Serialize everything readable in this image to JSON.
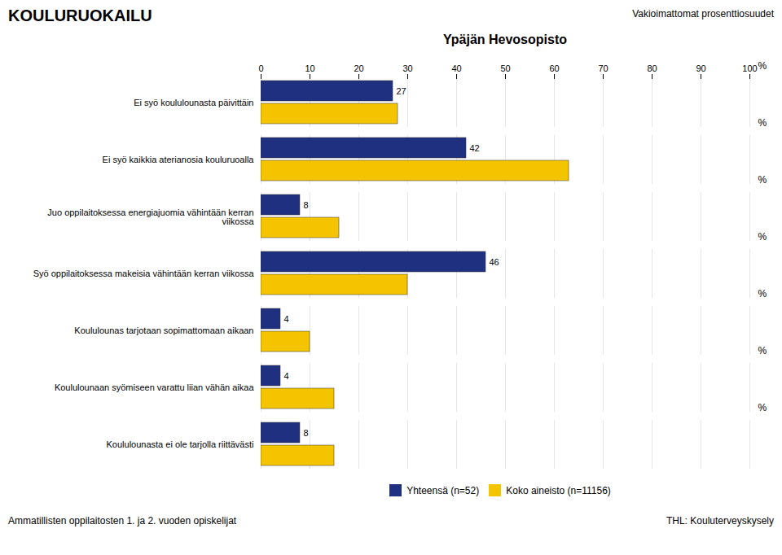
{
  "chart_data": {
    "type": "bar",
    "orientation": "horizontal",
    "title": "KOULURUOKAILU",
    "subtitle": "Ypäjän Hevosopisto",
    "annotations": [
      "Vakioimattomat prosenttiosuudet",
      "Ammatillisten oppilaitosten 1. ja 2. vuoden opiskelijat",
      "THL: Kouluterveyskysely"
    ],
    "xlabel": "%",
    "categories": [
      "Ei syö koululounasta päivittäin",
      "Ei syö kaikkia aterianosia kouluruoalla",
      "Juo oppilaitoksessa energiajuomia vähintään kerran\nviikossa",
      "Syö oppilaitoksessa makeisia vähintään kerran viikossa",
      "Koululounas tarjotaan sopimattomaan aikaan",
      "Koululounaan syömiseen varattu liian vähän aikaa",
      "Koululounasta ei ole tarjolla riittävästi"
    ],
    "series": [
      {
        "name": "Yhteensä (n=52)",
        "color": "#1F3080",
        "values": [
          27,
          42,
          8,
          46,
          4,
          4,
          8
        ],
        "data_labels": true
      },
      {
        "name": "Koko aineisto (n=11156)",
        "color": "#F5C400",
        "values": [
          28,
          63,
          16,
          30,
          10,
          15,
          15
        ]
      }
    ],
    "xlim": [
      0,
      100
    ],
    "xticks": [
      0,
      10,
      20,
      30,
      40,
      50,
      60,
      70,
      80,
      90,
      100
    ],
    "grid": true,
    "legend": "bottom"
  }
}
